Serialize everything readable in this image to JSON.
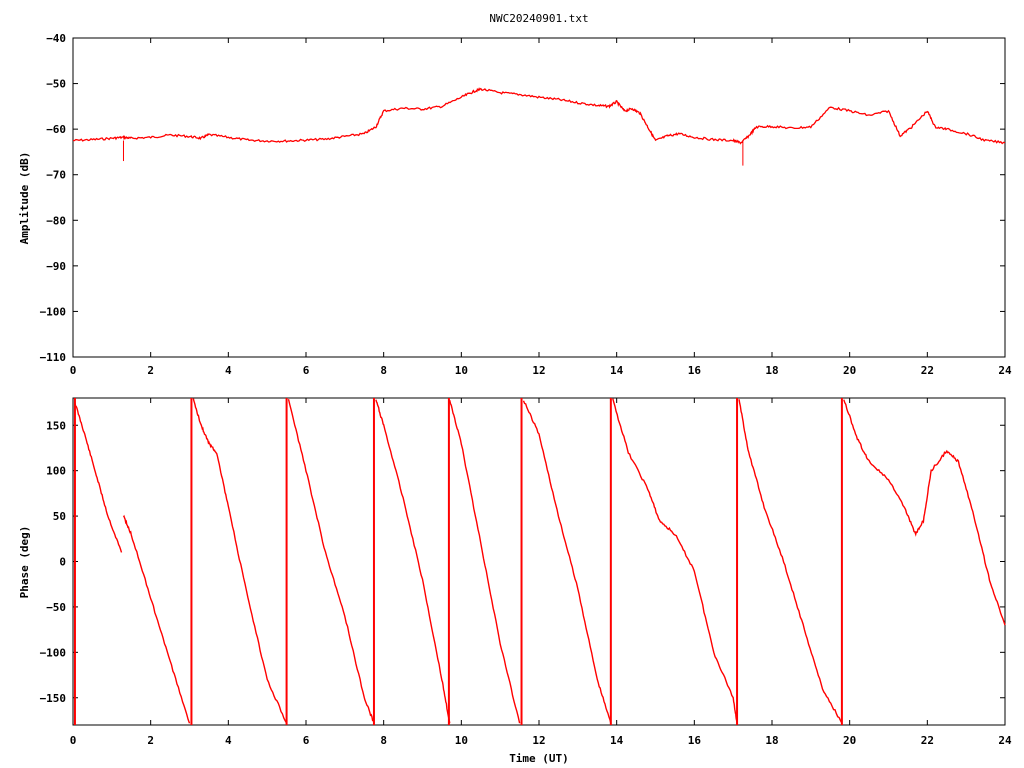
{
  "figure": {
    "title": "NWC20240901.txt",
    "line_color": "#ff0000",
    "background": "#ffffff"
  },
  "chart_data": [
    {
      "type": "line",
      "name": "amplitude",
      "title": "NWC20240901.txt",
      "xlabel": "",
      "ylabel": "Amplitude (dB)",
      "xlim": [
        0,
        24
      ],
      "ylim": [
        -110,
        -40
      ],
      "x_ticks": [
        0,
        2,
        4,
        6,
        8,
        10,
        12,
        14,
        16,
        18,
        20,
        22,
        24
      ],
      "y_ticks": [
        -110,
        -100,
        -90,
        -80,
        -70,
        -60,
        -50,
        -40
      ],
      "x_tick_labels": [
        "0",
        "2",
        "4",
        "6",
        "8",
        "10",
        "12",
        "14",
        "16",
        "18",
        "20",
        "22",
        "24"
      ],
      "y_tick_labels": [
        "−110",
        "−100",
        "−90",
        "−80",
        "−70",
        "−60",
        "−50",
        "−40"
      ],
      "grid": false,
      "color": "#ff0000",
      "x": [
        0,
        0.5,
        1.0,
        1.3,
        1.5,
        2.0,
        2.5,
        3.0,
        3.3,
        3.5,
        4.0,
        4.5,
        5.0,
        5.5,
        6.0,
        6.5,
        7.0,
        7.5,
        7.8,
        8.0,
        8.5,
        9.0,
        9.5,
        10.0,
        10.3,
        10.5,
        11.0,
        11.5,
        12.0,
        12.5,
        13.0,
        13.5,
        13.8,
        14.0,
        14.2,
        14.4,
        14.6,
        14.8,
        15.0,
        15.3,
        15.6,
        16.0,
        16.5,
        17.0,
        17.2,
        17.4,
        17.6,
        18.0,
        18.5,
        19.0,
        19.5,
        20.0,
        20.5,
        21.0,
        21.3,
        21.6,
        22.0,
        22.2,
        22.5,
        23.0,
        23.5,
        24.0
      ],
      "y": [
        -62.5,
        -62.3,
        -62.0,
        -61.8,
        -62.0,
        -61.8,
        -61.3,
        -61.6,
        -62.0,
        -61.2,
        -61.8,
        -62.4,
        -62.6,
        -62.6,
        -62.4,
        -62.2,
        -61.6,
        -61.0,
        -59.5,
        -56.0,
        -55.4,
        -55.6,
        -55.0,
        -53.0,
        -51.8,
        -51.2,
        -52.0,
        -52.4,
        -53.0,
        -53.5,
        -54.2,
        -54.8,
        -55.0,
        -54.0,
        -56.0,
        -55.5,
        -56.5,
        -59.5,
        -62.5,
        -61.5,
        -61.0,
        -61.8,
        -62.3,
        -62.5,
        -63.0,
        -61.5,
        -59.5,
        -59.4,
        -59.8,
        -59.5,
        -55.2,
        -56.0,
        -57.0,
        -56.0,
        -61.5,
        -59.5,
        -56.0,
        -59.5,
        -60.0,
        -61.0,
        -62.5,
        -63.0
      ],
      "spikes": [
        {
          "x": 1.3,
          "y": -67
        },
        {
          "x": 17.25,
          "y": -68
        }
      ]
    },
    {
      "type": "line",
      "name": "phase",
      "title": "",
      "xlabel": "Time (UT)",
      "ylabel": "Phase (deg)",
      "xlim": [
        0,
        24
      ],
      "ylim": [
        -180,
        180
      ],
      "x_ticks": [
        0,
        2,
        4,
        6,
        8,
        10,
        12,
        14,
        16,
        18,
        20,
        22,
        24
      ],
      "y_ticks": [
        -150,
        -100,
        -50,
        0,
        50,
        100,
        150
      ],
      "x_tick_labels": [
        "0",
        "2",
        "4",
        "6",
        "8",
        "10",
        "12",
        "14",
        "16",
        "18",
        "20",
        "22",
        "24"
      ],
      "y_tick_labels": [
        "−150",
        "−100",
        "−50",
        "0",
        "50",
        "100",
        "150"
      ],
      "grid": false,
      "color": "#ff0000",
      "segments": [
        {
          "x": [
            0.05,
            0.3,
            0.6,
            0.9,
            1.25
          ],
          "y": [
            175,
            140,
            95,
            50,
            10
          ]
        },
        {
          "x": [
            1.3,
            1.5,
            2.0,
            2.5,
            3.0
          ],
          "y": [
            50,
            30,
            -40,
            -110,
            -178
          ]
        },
        {
          "x": [
            3.1,
            3.3,
            3.5,
            3.7,
            4.0,
            4.5,
            5.0,
            5.5
          ],
          "y": [
            178,
            150,
            130,
            120,
            60,
            -40,
            -130,
            -178
          ]
        },
        {
          "x": [
            5.55,
            6.0,
            6.5,
            7.0,
            7.5,
            7.75
          ],
          "y": [
            178,
            100,
            10,
            -60,
            -150,
            -178
          ]
        },
        {
          "x": [
            7.8,
            8.0,
            8.5,
            9.0,
            9.5,
            9.7
          ],
          "y": [
            178,
            150,
            70,
            -20,
            -130,
            -178
          ]
        },
        {
          "x": [
            9.7,
            10.0,
            10.5,
            11.0,
            11.5
          ],
          "y": [
            178,
            130,
            20,
            -90,
            -178
          ]
        },
        {
          "x": [
            11.6,
            12.0,
            12.5,
            13.0,
            13.5,
            13.85
          ],
          "y": [
            178,
            140,
            50,
            -30,
            -130,
            -178
          ]
        },
        {
          "x": [
            13.9,
            14.3,
            14.8,
            15.1,
            15.5,
            16.0,
            16.5,
            17.0,
            17.1
          ],
          "y": [
            178,
            120,
            80,
            45,
            30,
            -10,
            -100,
            -150,
            -178
          ]
        },
        {
          "x": [
            17.15,
            17.4,
            17.8,
            18.3,
            18.8,
            19.3,
            19.8
          ],
          "y": [
            178,
            120,
            60,
            0,
            -70,
            -140,
            -178
          ]
        },
        {
          "x": [
            19.85,
            20.2,
            20.5,
            21.0,
            21.4,
            21.7,
            21.9,
            22.1,
            22.5,
            22.8,
            23.2,
            23.6,
            24.0
          ],
          "y": [
            178,
            135,
            110,
            90,
            60,
            30,
            45,
            100,
            122,
            110,
            50,
            -20,
            -70
          ]
        }
      ],
      "verticals": [
        0.05,
        3.05,
        5.5,
        7.75,
        9.68,
        11.55,
        13.85,
        17.1,
        19.8
      ]
    }
  ]
}
